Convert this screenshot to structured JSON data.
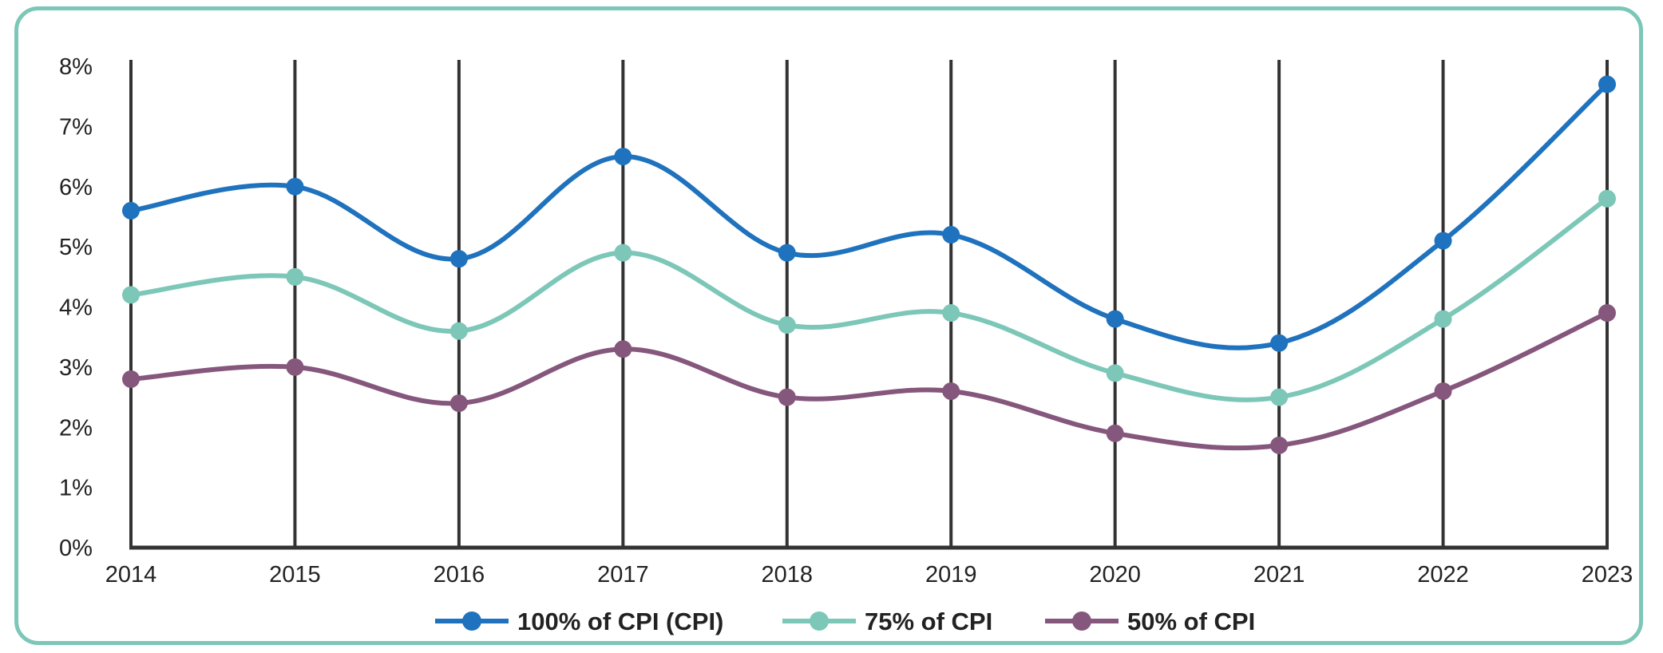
{
  "chart_data": {
    "type": "line",
    "x": [
      "2014",
      "2015",
      "2016",
      "2017",
      "2018",
      "2019",
      "2020",
      "2021",
      "2022",
      "2023"
    ],
    "ylim": [
      0,
      8
    ],
    "y_ticks": [
      "0%",
      "1%",
      "2%",
      "3%",
      "4%",
      "5%",
      "6%",
      "7%",
      "8%"
    ],
    "grid": "vertical",
    "legend_position": "bottom",
    "title": "",
    "xlabel": "",
    "ylabel": "",
    "series": [
      {
        "name": "100% of CPI (CPI)",
        "color": "#1f72bd",
        "values": [
          5.6,
          6.0,
          4.8,
          6.5,
          4.9,
          5.2,
          3.8,
          3.4,
          5.1,
          7.7
        ]
      },
      {
        "name": "75% of CPI",
        "color": "#7cc7b8",
        "values": [
          4.2,
          4.5,
          3.6,
          4.9,
          3.7,
          3.9,
          2.9,
          2.5,
          3.8,
          5.8
        ]
      },
      {
        "name": "50% of CPI",
        "color": "#85577c",
        "values": [
          2.8,
          3.0,
          2.4,
          3.3,
          2.5,
          2.6,
          1.9,
          1.7,
          2.6,
          3.9
        ]
      }
    ]
  }
}
